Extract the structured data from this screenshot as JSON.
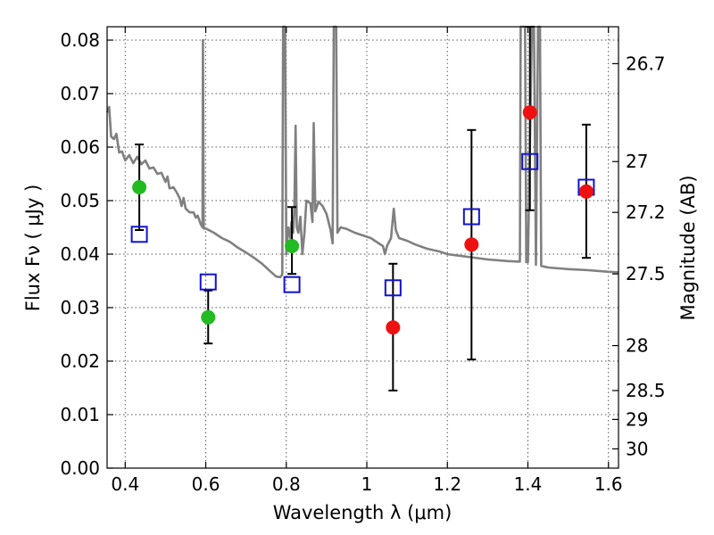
{
  "chart_data": {
    "type": "scatter",
    "xlabel": "Wavelength  λ (μm)",
    "ylabel": "Flux  Fν  ( μJy )",
    "ylabel_right": "Magnitude (AB)",
    "xlim": [
      0.355,
      1.625
    ],
    "ylim": [
      0.0,
      0.0825
    ],
    "x_ticks": [
      0.4,
      0.6,
      0.8,
      1.0,
      1.2,
      1.4,
      1.6
    ],
    "x_tick_labels": [
      "0.4",
      "0.6",
      "0.8",
      "1",
      "1.2",
      "1.4",
      "1.6"
    ],
    "y_ticks": [
      0.0,
      0.01,
      0.02,
      0.03,
      0.04,
      0.05,
      0.06,
      0.07,
      0.08
    ],
    "y_tick_labels": [
      "0.00",
      "0.01",
      "0.02",
      "0.03",
      "0.04",
      "0.05",
      "0.06",
      "0.07",
      "0.08"
    ],
    "right_ticks": [
      {
        "label": "26.7",
        "flux": 0.0756
      },
      {
        "label": "27",
        "flux": 0.0573
      },
      {
        "label": "27.2",
        "flux": 0.0478
      },
      {
        "label": "27.5",
        "flux": 0.0363
      },
      {
        "label": "28",
        "flux": 0.0229
      },
      {
        "label": "28.5",
        "flux": 0.0145
      },
      {
        "label": "29",
        "flux": 0.0091
      },
      {
        "label": "30",
        "flux": 0.0036
      }
    ],
    "grid": true,
    "colors": {
      "model": "#808080",
      "green": "#22bb22",
      "red": "#ee1111",
      "square": "#1111cc",
      "errorbar": "#000000"
    },
    "observed_points": [
      {
        "x": 0.435,
        "y": 0.0525,
        "yerr_low": 0.0445,
        "yerr_high": 0.0605,
        "color": "green"
      },
      {
        "x": 0.606,
        "y": 0.0282,
        "yerr_low": 0.0233,
        "yerr_high": 0.0332,
        "color": "green"
      },
      {
        "x": 0.814,
        "y": 0.0415,
        "yerr_low": 0.0363,
        "yerr_high": 0.0488,
        "color": "green"
      },
      {
        "x": 1.065,
        "y": 0.0263,
        "yerr_low": 0.0145,
        "yerr_high": 0.0382,
        "color": "red"
      },
      {
        "x": 1.26,
        "y": 0.0418,
        "yerr_low": 0.0203,
        "yerr_high": 0.0632,
        "color": "red"
      },
      {
        "x": 1.405,
        "y": 0.0665,
        "yerr_low": 0.0482,
        "yerr_high": 0.0825,
        "color": "red"
      },
      {
        "x": 1.545,
        "y": 0.0517,
        "yerr_low": 0.0393,
        "yerr_high": 0.0642,
        "color": "red"
      }
    ],
    "model_points": [
      {
        "x": 0.435,
        "y": 0.0437
      },
      {
        "x": 0.606,
        "y": 0.0348
      },
      {
        "x": 0.814,
        "y": 0.0343
      },
      {
        "x": 1.065,
        "y": 0.0337
      },
      {
        "x": 1.26,
        "y": 0.047
      },
      {
        "x": 1.405,
        "y": 0.0573
      },
      {
        "x": 1.545,
        "y": 0.0525
      }
    ],
    "model_spectrum": [
      [
        0.355,
        0.0665
      ],
      [
        0.36,
        0.0675
      ],
      [
        0.365,
        0.062
      ],
      [
        0.372,
        0.0615
      ],
      [
        0.378,
        0.0625
      ],
      [
        0.385,
        0.059
      ],
      [
        0.392,
        0.0592
      ],
      [
        0.4,
        0.0575
      ],
      [
        0.41,
        0.0585
      ],
      [
        0.42,
        0.057
      ],
      [
        0.43,
        0.0582
      ],
      [
        0.44,
        0.0568
      ],
      [
        0.45,
        0.0575
      ],
      [
        0.46,
        0.056
      ],
      [
        0.47,
        0.0562
      ],
      [
        0.48,
        0.055
      ],
      [
        0.49,
        0.0552
      ],
      [
        0.5,
        0.0535
      ],
      [
        0.505,
        0.0545
      ],
      [
        0.51,
        0.0523
      ],
      [
        0.52,
        0.0525
      ],
      [
        0.528,
        0.0515
      ],
      [
        0.535,
        0.0505
      ],
      [
        0.54,
        0.049
      ],
      [
        0.545,
        0.0505
      ],
      [
        0.55,
        0.0485
      ],
      [
        0.56,
        0.0478
      ],
      [
        0.57,
        0.0478
      ],
      [
        0.575,
        0.0468
      ],
      [
        0.58,
        0.0472
      ],
      [
        0.588,
        0.0455
      ],
      [
        0.592,
        0.045
      ],
      [
        0.593,
        0.08
      ],
      [
        0.595,
        0.0448
      ],
      [
        0.6,
        0.0448
      ],
      [
        0.62,
        0.044
      ],
      [
        0.64,
        0.043
      ],
      [
        0.66,
        0.0423
      ],
      [
        0.68,
        0.0412
      ],
      [
        0.7,
        0.0403
      ],
      [
        0.72,
        0.0393
      ],
      [
        0.74,
        0.0382
      ],
      [
        0.76,
        0.0368
      ],
      [
        0.775,
        0.0358
      ],
      [
        0.785,
        0.0357
      ],
      [
        0.79,
        0.0362
      ],
      [
        0.792,
        0.083
      ],
      [
        0.797,
        0.083
      ],
      [
        0.8,
        0.04
      ],
      [
        0.805,
        0.045
      ],
      [
        0.81,
        0.043
      ],
      [
        0.813,
        0.046
      ],
      [
        0.817,
        0.044
      ],
      [
        0.82,
        0.048
      ],
      [
        0.823,
        0.064
      ],
      [
        0.826,
        0.045
      ],
      [
        0.83,
        0.044
      ],
      [
        0.835,
        0.047
      ],
      [
        0.84,
        0.04
      ],
      [
        0.845,
        0.044
      ],
      [
        0.85,
        0.05
      ],
      [
        0.86,
        0.0495
      ],
      [
        0.865,
        0.046
      ],
      [
        0.868,
        0.0645
      ],
      [
        0.872,
        0.048
      ],
      [
        0.88,
        0.0498
      ],
      [
        0.89,
        0.049
      ],
      [
        0.9,
        0.0475
      ],
      [
        0.91,
        0.0445
      ],
      [
        0.915,
        0.042
      ],
      [
        0.918,
        0.083
      ],
      [
        0.924,
        0.083
      ],
      [
        0.927,
        0.044
      ],
      [
        0.935,
        0.045
      ],
      [
        0.95,
        0.0447
      ],
      [
        0.97,
        0.044
      ],
      [
        0.99,
        0.0435
      ],
      [
        1.01,
        0.043
      ],
      [
        1.03,
        0.042
      ],
      [
        1.04,
        0.0415
      ],
      [
        1.045,
        0.04
      ],
      [
        1.05,
        0.0415
      ],
      [
        1.06,
        0.043
      ],
      [
        1.067,
        0.0485
      ],
      [
        1.072,
        0.0445
      ],
      [
        1.08,
        0.043
      ],
      [
        1.1,
        0.0425
      ],
      [
        1.12,
        0.0418
      ],
      [
        1.15,
        0.041
      ],
      [
        1.18,
        0.0405
      ],
      [
        1.2,
        0.04
      ],
      [
        1.25,
        0.0395
      ],
      [
        1.3,
        0.039
      ],
      [
        1.35,
        0.0387
      ],
      [
        1.38,
        0.0386
      ],
      [
        1.382,
        0.083
      ],
      [
        1.39,
        0.083
      ],
      [
        1.393,
        0.083
      ],
      [
        1.396,
        0.0385
      ],
      [
        1.4,
        0.0385
      ],
      [
        1.41,
        0.083
      ],
      [
        1.415,
        0.083
      ],
      [
        1.42,
        0.038
      ],
      [
        1.425,
        0.083
      ],
      [
        1.43,
        0.083
      ],
      [
        1.433,
        0.0378
      ],
      [
        1.45,
        0.0375
      ],
      [
        1.5,
        0.0372
      ],
      [
        1.55,
        0.037
      ],
      [
        1.6,
        0.0367
      ],
      [
        1.625,
        0.0366
      ]
    ]
  }
}
